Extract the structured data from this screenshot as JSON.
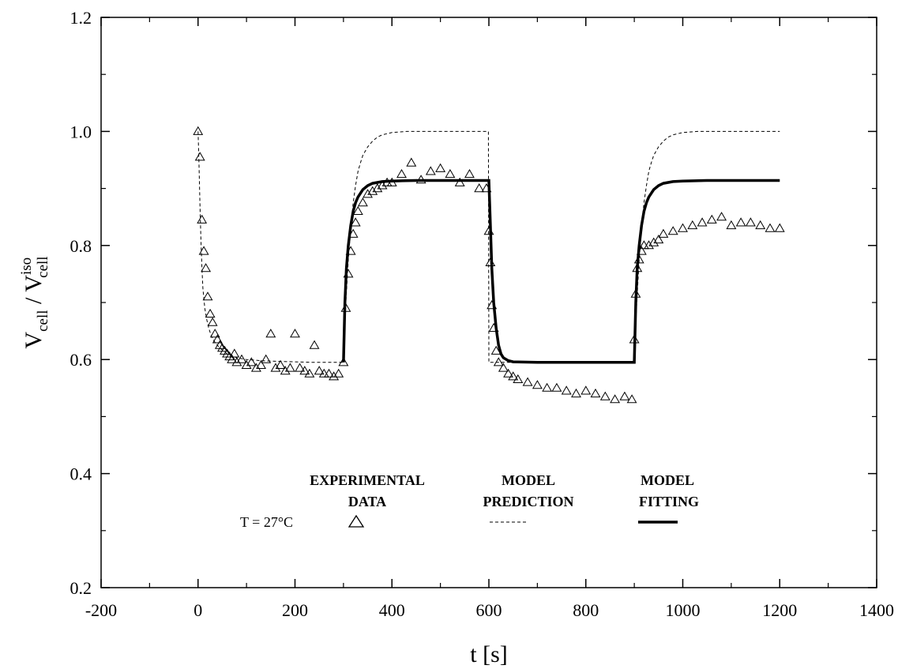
{
  "chart_data": {
    "type": "scatter",
    "xlabel": "t [s]",
    "ylabel": {
      "main": "V",
      "sub1": "cell",
      "sep": " / V",
      "sup": "iso",
      "sub2": "cell"
    },
    "xlim": [
      -200,
      1400
    ],
    "ylim": [
      0.2,
      1.2
    ],
    "xticks": [
      -200,
      0,
      200,
      400,
      600,
      800,
      1000,
      1200,
      1400
    ],
    "yticks": [
      0.2,
      0.4,
      0.6,
      0.8,
      1.0,
      1.2
    ],
    "xtick_labels": [
      "-200",
      "0",
      "200",
      "400",
      "600",
      "800",
      "1000",
      "1200",
      "1400"
    ],
    "ytick_labels": [
      "0.2",
      "0.4",
      "0.6",
      "0.8",
      "1.0",
      "1.2"
    ],
    "grid": false,
    "annotation": "T = 27°C",
    "legend": {
      "placement": "bottom-center",
      "entries": [
        {
          "line1": "EXPERIMENTAL",
          "line2": "DATA",
          "style": "triangle"
        },
        {
          "line1": "MODEL",
          "line2": "PREDICTION",
          "style": "dashed"
        },
        {
          "line1": "MODEL",
          "line2": "FITTING",
          "style": "solid-thick"
        }
      ]
    },
    "series": [
      {
        "style": "triangle",
        "x": [
          0,
          4,
          8,
          12,
          16,
          20,
          25,
          30,
          35,
          40,
          45,
          50,
          55,
          60,
          65,
          70,
          75,
          80,
          90,
          100,
          110,
          120,
          130,
          140,
          150,
          160,
          170,
          180,
          190,
          200,
          210,
          220,
          230,
          240,
          250,
          260,
          270,
          280,
          290,
          300,
          305,
          310,
          315,
          320,
          325,
          330,
          340,
          350,
          360,
          370,
          380,
          390,
          400,
          420,
          440,
          460,
          480,
          500,
          520,
          540,
          560,
          580,
          595,
          600,
          603,
          606,
          610,
          615,
          620,
          630,
          640,
          650,
          660,
          680,
          700,
          720,
          740,
          760,
          780,
          800,
          820,
          840,
          860,
          880,
          895,
          900,
          903,
          906,
          910,
          915,
          920,
          930,
          940,
          950,
          960,
          980,
          1000,
          1020,
          1040,
          1060,
          1080,
          1100,
          1120,
          1140,
          1160,
          1180,
          1200
        ],
        "y": [
          1.0,
          0.955,
          0.845,
          0.79,
          0.76,
          0.71,
          0.68,
          0.665,
          0.645,
          0.635,
          0.625,
          0.62,
          0.615,
          0.61,
          0.605,
          0.6,
          0.61,
          0.595,
          0.6,
          0.59,
          0.595,
          0.585,
          0.59,
          0.6,
          0.645,
          0.585,
          0.59,
          0.58,
          0.585,
          0.645,
          0.585,
          0.58,
          0.575,
          0.625,
          0.58,
          0.575,
          0.575,
          0.57,
          0.575,
          0.595,
          0.69,
          0.75,
          0.79,
          0.82,
          0.84,
          0.86,
          0.875,
          0.89,
          0.895,
          0.9,
          0.905,
          0.91,
          0.91,
          0.925,
          0.945,
          0.915,
          0.93,
          0.935,
          0.925,
          0.91,
          0.925,
          0.9,
          0.9,
          0.825,
          0.77,
          0.695,
          0.655,
          0.615,
          0.595,
          0.585,
          0.575,
          0.57,
          0.565,
          0.56,
          0.555,
          0.55,
          0.55,
          0.545,
          0.54,
          0.545,
          0.54,
          0.535,
          0.53,
          0.535,
          0.53,
          0.635,
          0.715,
          0.76,
          0.775,
          0.79,
          0.8,
          0.8,
          0.805,
          0.81,
          0.82,
          0.825,
          0.83,
          0.835,
          0.84,
          0.845,
          0.85,
          0.835,
          0.84,
          0.84,
          0.835,
          0.83,
          0.83
        ]
      },
      {
        "style": "dashed",
        "x": [
          0,
          2,
          4,
          6,
          8,
          10,
          14,
          18,
          22,
          28,
          35,
          45,
          60,
          80,
          100,
          130,
          160,
          200,
          240,
          280,
          300,
          300,
          305,
          310,
          315,
          320,
          325,
          330,
          335,
          340,
          350,
          360,
          370,
          380,
          400,
          430,
          460,
          500,
          550,
          599,
          600,
          603,
          606,
          610,
          615,
          620,
          630,
          640,
          660,
          700,
          750,
          800,
          850,
          899,
          900,
          905,
          910,
          915,
          920,
          925,
          930,
          935,
          940,
          950,
          960,
          970,
          980,
          1000,
          1030,
          1060,
          1100,
          1150,
          1200
        ],
        "y": [
          1.0,
          0.94,
          0.87,
          0.81,
          0.76,
          0.725,
          0.69,
          0.67,
          0.655,
          0.64,
          0.63,
          0.62,
          0.61,
          0.603,
          0.6,
          0.598,
          0.597,
          0.596,
          0.595,
          0.595,
          0.595,
          0.595,
          0.7,
          0.775,
          0.83,
          0.875,
          0.905,
          0.93,
          0.945,
          0.958,
          0.973,
          0.983,
          0.99,
          0.994,
          0.998,
          1.0,
          1.0,
          1.0,
          1.0,
          1.0,
          0.595,
          0.595,
          0.595,
          0.595,
          0.595,
          0.595,
          0.595,
          0.595,
          0.595,
          0.595,
          0.595,
          0.595,
          0.595,
          0.595,
          0.595,
          0.7,
          0.775,
          0.83,
          0.875,
          0.905,
          0.93,
          0.945,
          0.958,
          0.973,
          0.983,
          0.99,
          0.994,
          0.998,
          1.0,
          1.0,
          1.0,
          1.0,
          1.0
        ]
      },
      {
        "style": "solid-thick",
        "x": [
          300,
          303,
          306,
          310,
          315,
          320,
          325,
          330,
          340,
          350,
          360,
          380,
          400,
          450,
          500,
          550,
          600,
          600,
          603,
          606,
          610,
          615,
          620,
          625,
          630,
          640,
          650,
          700,
          800,
          900,
          900,
          903,
          906,
          910,
          915,
          920,
          925,
          930,
          940,
          950,
          960,
          980,
          1000,
          1050,
          1100,
          1150,
          1200
        ],
        "y": [
          0.595,
          0.7,
          0.76,
          0.8,
          0.835,
          0.86,
          0.875,
          0.885,
          0.898,
          0.905,
          0.909,
          0.912,
          0.913,
          0.914,
          0.914,
          0.914,
          0.914,
          0.914,
          0.84,
          0.76,
          0.7,
          0.655,
          0.625,
          0.61,
          0.603,
          0.598,
          0.596,
          0.595,
          0.595,
          0.595,
          0.595,
          0.7,
          0.76,
          0.8,
          0.835,
          0.86,
          0.875,
          0.885,
          0.898,
          0.905,
          0.909,
          0.912,
          0.913,
          0.914,
          0.914,
          0.914,
          0.914
        ]
      }
    ]
  }
}
